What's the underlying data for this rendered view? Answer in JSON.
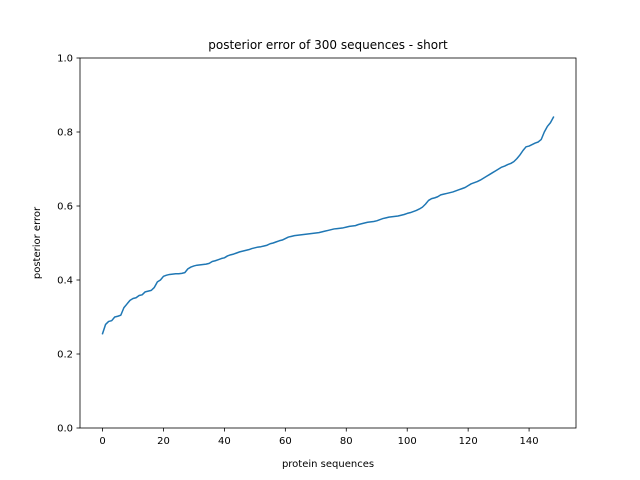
{
  "chart_data": {
    "type": "line",
    "title": "posterior error of 300 sequences - short",
    "xlabel": "protein  sequences",
    "ylabel": "posterior error",
    "xlim": [
      -7.4,
      155.4
    ],
    "ylim": [
      0.0,
      1.0
    ],
    "xticks": [
      0,
      20,
      40,
      60,
      80,
      100,
      120,
      140
    ],
    "yticks": [
      0.0,
      0.2,
      0.4,
      0.6,
      0.8,
      1.0
    ],
    "xtick_labels": [
      "0",
      "20",
      "40",
      "60",
      "80",
      "100",
      "120",
      "140"
    ],
    "ytick_labels": [
      "0.0",
      "0.2",
      "0.4",
      "0.6",
      "0.8",
      "1.0"
    ],
    "grid": false,
    "series": [
      {
        "color": "#1f77b4",
        "x": [
          0,
          1,
          2,
          3,
          4,
          5,
          6,
          7,
          8,
          9,
          10,
          11,
          12,
          13,
          14,
          15,
          16,
          17,
          18,
          19,
          20,
          21,
          22,
          23,
          24,
          25,
          26,
          27,
          28,
          29,
          30,
          31,
          32,
          33,
          34,
          35,
          36,
          37,
          38,
          39,
          40,
          41,
          42,
          43,
          44,
          45,
          46,
          47,
          48,
          49,
          50,
          51,
          52,
          53,
          54,
          55,
          56,
          57,
          58,
          59,
          60,
          61,
          62,
          63,
          64,
          65,
          66,
          67,
          68,
          69,
          70,
          71,
          72,
          73,
          74,
          75,
          76,
          77,
          78,
          79,
          80,
          81,
          82,
          83,
          84,
          85,
          86,
          87,
          88,
          89,
          90,
          91,
          92,
          93,
          94,
          95,
          96,
          97,
          98,
          99,
          100,
          101,
          102,
          103,
          104,
          105,
          106,
          107,
          108,
          109,
          110,
          111,
          112,
          113,
          114,
          115,
          116,
          117,
          118,
          119,
          120,
          121,
          122,
          123,
          124,
          125,
          126,
          127,
          128,
          129,
          130,
          131,
          132,
          133,
          134,
          135,
          136,
          137,
          138,
          139,
          140,
          141,
          142,
          143,
          144,
          145,
          146,
          147,
          148
        ],
        "y": [
          0.255,
          0.28,
          0.288,
          0.29,
          0.3,
          0.302,
          0.305,
          0.325,
          0.335,
          0.345,
          0.35,
          0.352,
          0.358,
          0.36,
          0.368,
          0.37,
          0.372,
          0.38,
          0.395,
          0.4,
          0.41,
          0.413,
          0.415,
          0.416,
          0.417,
          0.417,
          0.418,
          0.42,
          0.43,
          0.435,
          0.438,
          0.44,
          0.441,
          0.442,
          0.443,
          0.445,
          0.45,
          0.452,
          0.455,
          0.458,
          0.46,
          0.465,
          0.468,
          0.47,
          0.473,
          0.476,
          0.478,
          0.48,
          0.482,
          0.485,
          0.487,
          0.489,
          0.49,
          0.492,
          0.494,
          0.498,
          0.5,
          0.503,
          0.506,
          0.508,
          0.512,
          0.516,
          0.518,
          0.52,
          0.521,
          0.522,
          0.523,
          0.524,
          0.525,
          0.526,
          0.527,
          0.528,
          0.53,
          0.532,
          0.534,
          0.536,
          0.538,
          0.539,
          0.54,
          0.541,
          0.543,
          0.545,
          0.546,
          0.547,
          0.55,
          0.552,
          0.554,
          0.556,
          0.557,
          0.558,
          0.56,
          0.563,
          0.566,
          0.568,
          0.57,
          0.571,
          0.572,
          0.573,
          0.575,
          0.577,
          0.58,
          0.582,
          0.585,
          0.588,
          0.592,
          0.597,
          0.605,
          0.615,
          0.62,
          0.622,
          0.625,
          0.63,
          0.632,
          0.634,
          0.636,
          0.638,
          0.641,
          0.644,
          0.647,
          0.65,
          0.655,
          0.66,
          0.663,
          0.666,
          0.67,
          0.675,
          0.68,
          0.685,
          0.69,
          0.695,
          0.7,
          0.705,
          0.708,
          0.712,
          0.715,
          0.72,
          0.728,
          0.738,
          0.75,
          0.76,
          0.762,
          0.766,
          0.77,
          0.773,
          0.78,
          0.8,
          0.815,
          0.825,
          0.84
        ]
      }
    ]
  }
}
